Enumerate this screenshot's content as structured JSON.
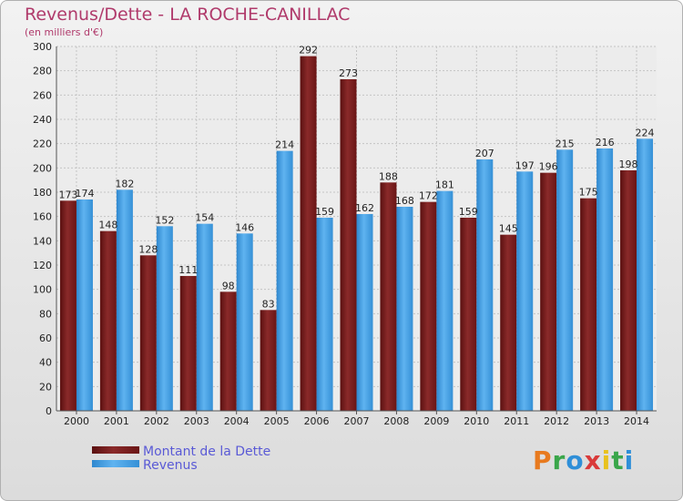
{
  "chart_data": {
    "type": "bar",
    "title": "Revenus/Dette - LA ROCHE-CANILLAC",
    "subtitle": "(en milliers d'€)",
    "categories": [
      "2000",
      "2001",
      "2002",
      "2003",
      "2004",
      "2005",
      "2006",
      "2007",
      "2008",
      "2009",
      "2010",
      "2011",
      "2012",
      "2013",
      "2014"
    ],
    "series": [
      {
        "name": "Montant de la Dette",
        "color": "#7a1f1f",
        "values": [
          173,
          148,
          128,
          111,
          98,
          83,
          292,
          273,
          188,
          172,
          159,
          145,
          196,
          175,
          198
        ]
      },
      {
        "name": "Revenus",
        "color": "#3b9be0",
        "values": [
          174,
          182,
          152,
          154,
          146,
          214,
          159,
          162,
          168,
          181,
          207,
          197,
          215,
          216,
          224
        ]
      }
    ],
    "ylim": [
      0,
      300
    ],
    "yticks": [
      0,
      20,
      40,
      60,
      80,
      100,
      120,
      140,
      160,
      180,
      200,
      220,
      240,
      260,
      280,
      300
    ],
    "grid": true,
    "legend_position": "bottom-left"
  },
  "logo": {
    "letters": [
      "P",
      "r",
      "o",
      "x",
      "i",
      "t",
      "i"
    ]
  }
}
